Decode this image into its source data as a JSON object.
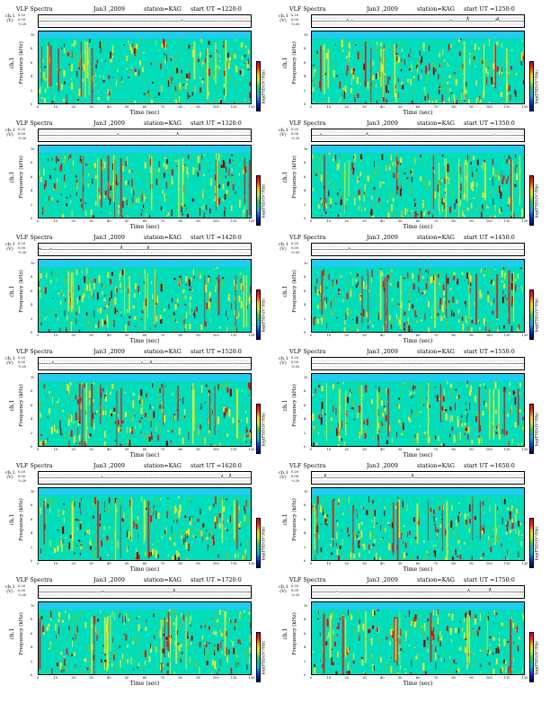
{
  "common": {
    "title": "VLF Spectra",
    "date": "Jan3 ,2009",
    "station": "station=KAG",
    "start_prefix": "start UT =",
    "ts_label": "ch.1 (V)",
    "y_label_top": "ch.1",
    "y_label_bottom": "Frequency (kHz)",
    "x_label": "Time (sec)",
    "colorbar_label": "log(PSD)(V²/Hz)",
    "ts_ticks": [
      "0.20",
      "0.00",
      "-0.20"
    ],
    "y_ticks": [
      "0",
      "2",
      "4",
      "6",
      "8",
      "10"
    ],
    "x_ticks": [
      "0",
      "10",
      "20",
      "30",
      "40",
      "50",
      "60",
      "70",
      "80",
      "90",
      "100",
      "110",
      "120"
    ],
    "colors": {
      "background": "#00ddbb",
      "green": "#55cc55",
      "yellow": "#eeee22",
      "red": "#dd1111",
      "darkred": "#880000",
      "top_band": "#22ccee"
    }
  },
  "panels": [
    {
      "start": "1220:0"
    },
    {
      "start": "1250:0"
    },
    {
      "start": "1320:0"
    },
    {
      "start": "1350:0"
    },
    {
      "start": "1420:0"
    },
    {
      "start": "1450:0"
    },
    {
      "start": "1520:0"
    },
    {
      "start": "1550:0"
    },
    {
      "start": "1620:0"
    },
    {
      "start": "1650:0"
    },
    {
      "start": "1720:0"
    },
    {
      "start": "1750:0"
    }
  ]
}
